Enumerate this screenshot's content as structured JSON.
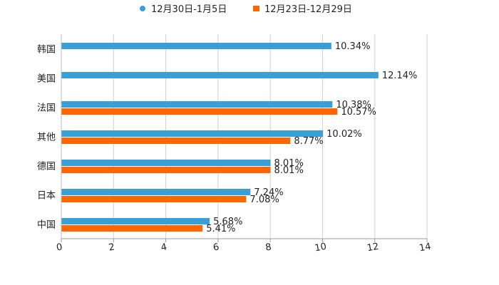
{
  "chart_data": {
    "type": "bar",
    "orientation": "horizontal",
    "title": "",
    "xlabel": "",
    "ylabel": "",
    "xlim": [
      0,
      14
    ],
    "x_ticks": [
      "0",
      "2",
      "4",
      "6",
      "8",
      "10",
      "12",
      "14"
    ],
    "grid": true,
    "legend_position": "top-center",
    "categories": [
      "韩国",
      "美国",
      "法国",
      "其他",
      "德国",
      "日本",
      "中国"
    ],
    "series": [
      {
        "name": "12月30日-1月5日",
        "color": "#3a9fd6",
        "values": [
          10.34,
          12.14,
          10.38,
          10.02,
          8.01,
          7.24,
          5.68
        ],
        "labels": [
          "10.34%",
          "12.14%",
          "10.38%",
          "10.02%",
          "8.01%",
          "7.24%",
          "5.68%"
        ]
      },
      {
        "name": "12月23日-12月29日",
        "color": "#ff6600",
        "values": [
          null,
          null,
          10.57,
          8.77,
          8.01,
          7.08,
          5.41
        ],
        "labels": [
          null,
          null,
          "10.57%",
          "8.77%",
          "8.01%",
          "7.08%",
          "5.41%"
        ]
      }
    ]
  }
}
